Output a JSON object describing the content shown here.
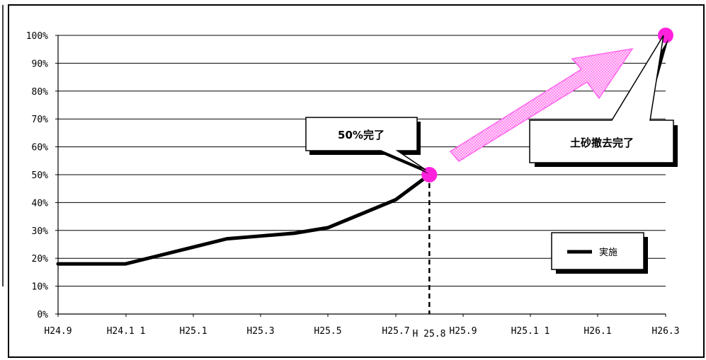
{
  "chart_data": {
    "type": "line",
    "title": "",
    "xlabel": "",
    "ylabel": "",
    "x_ticks": [
      "H24.9",
      "H24.1 1",
      "H25.1",
      "H25.3",
      "H25.5",
      "H25.7",
      "H25.9",
      "H25.1 1",
      "H26.1",
      "H26.3"
    ],
    "extra_tick": "H 25.8",
    "y_ticks": [
      "0%",
      "10%",
      "20%",
      "30%",
      "40%",
      "50%",
      "60%",
      "70%",
      "80%",
      "90%",
      "100%"
    ],
    "ylim": [
      0,
      100
    ],
    "grid": true,
    "legend": {
      "position": "right",
      "entries": [
        "実施"
      ]
    },
    "series": [
      {
        "name": "実施",
        "color": "#000000",
        "x": [
          "H24.9",
          "H24.10",
          "H24.11",
          "H24.12",
          "H25.1",
          "H25.2",
          "H25.3",
          "H25.4",
          "H25.5",
          "H25.6",
          "H25.7",
          "H25.8"
        ],
        "values": [
          18,
          18,
          18,
          21,
          24,
          27,
          28,
          29,
          31,
          36,
          41,
          50
        ]
      }
    ],
    "markers": [
      {
        "x": "H25.8",
        "y": 50,
        "color": "#ff22dd",
        "label": "50%完了"
      },
      {
        "x": "H26.3",
        "y": 100,
        "color": "#ff22dd",
        "label": "土砂撤去完了"
      }
    ],
    "arrow_color": "#ff66ee"
  }
}
